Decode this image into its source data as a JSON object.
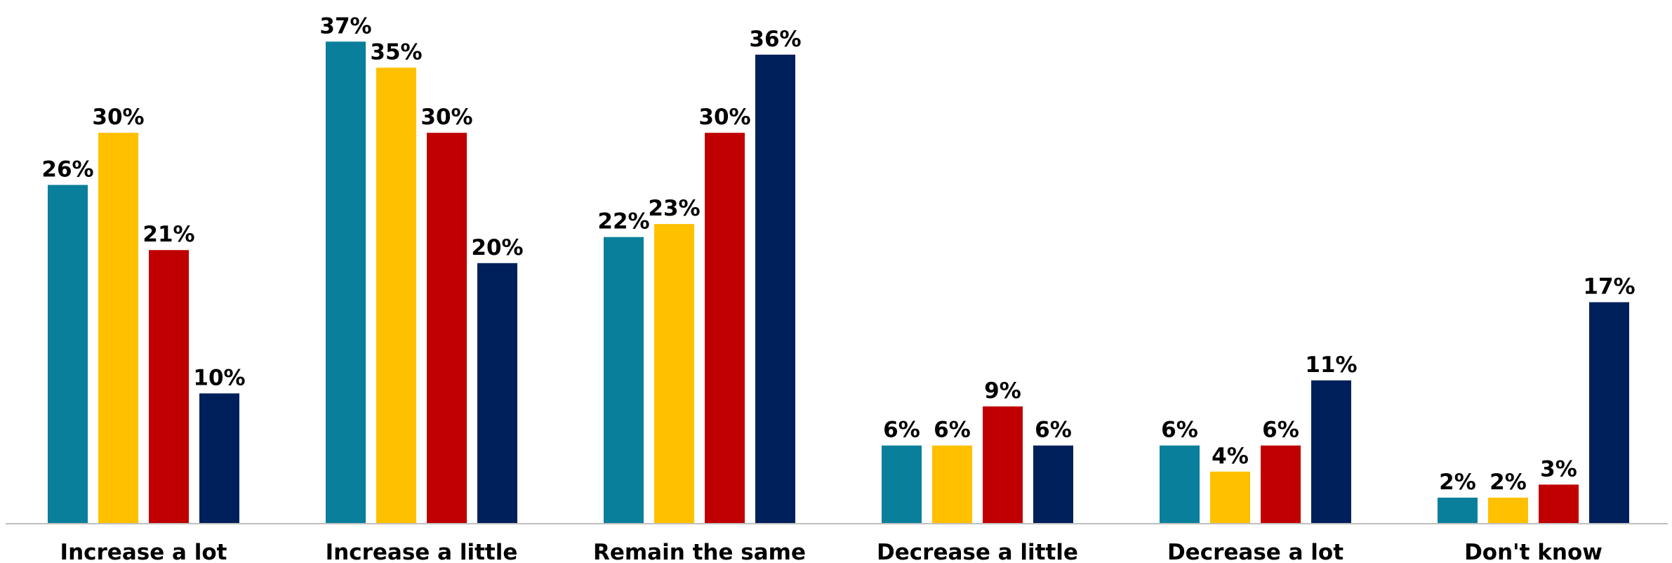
{
  "chart_data": {
    "type": "bar",
    "categories": [
      "Increase a lot",
      "Increase a little",
      "Remain the same",
      "Decrease a little",
      "Decrease a lot",
      "Don't know"
    ],
    "series": [
      {
        "color": "#0a7f9c",
        "values": [
          26,
          37,
          22,
          6,
          6,
          2
        ]
      },
      {
        "color": "#ffc000",
        "values": [
          30,
          35,
          23,
          6,
          4,
          2
        ]
      },
      {
        "color": "#c00000",
        "values": [
          21,
          30,
          30,
          9,
          6,
          3
        ]
      },
      {
        "color": "#00205b",
        "values": [
          10,
          20,
          36,
          6,
          11,
          17
        ]
      }
    ],
    "value_suffix": "%",
    "title": "",
    "xlabel": "",
    "ylabel": "",
    "ylim": [
      0,
      38
    ],
    "grid": false,
    "legend": "none",
    "data_labels": true
  }
}
